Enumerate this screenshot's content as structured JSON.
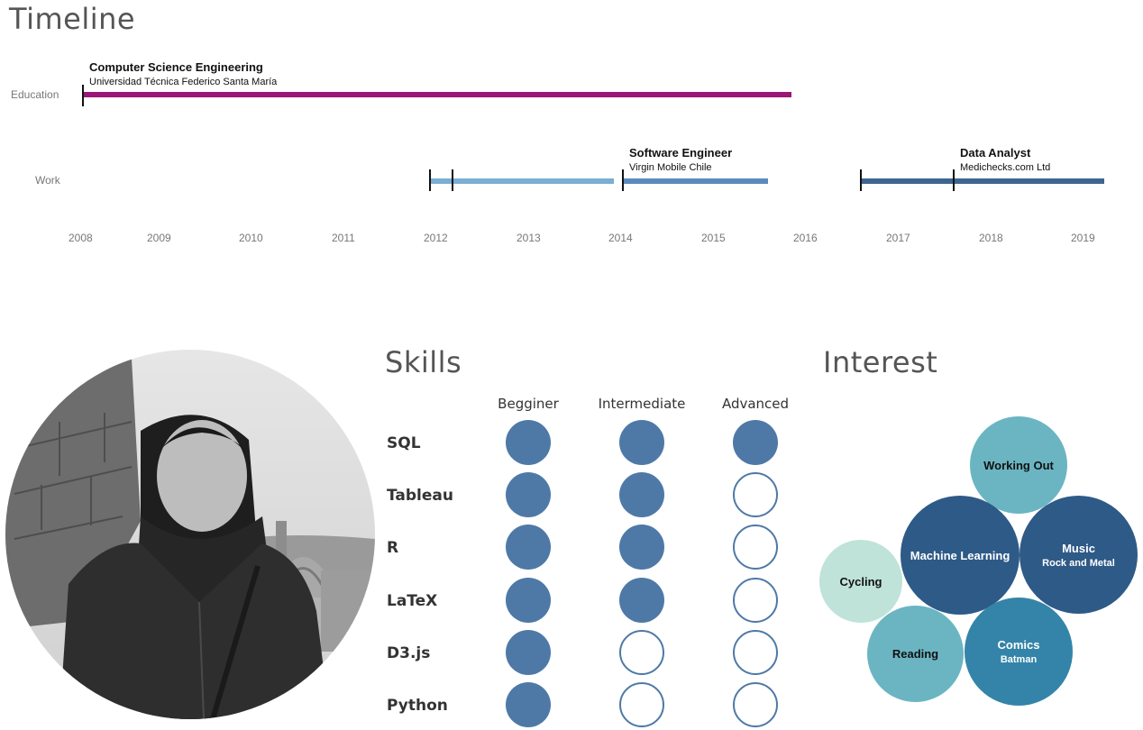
{
  "timeline": {
    "title": "Timeline",
    "rows": {
      "education": "Education",
      "work": "Work"
    },
    "years": [
      "2008",
      "2009",
      "2010",
      "2011",
      "2012",
      "2013",
      "2014",
      "2015",
      "2016",
      "2017",
      "2018",
      "2019"
    ],
    "education": {
      "title": "Computer Science Engineering",
      "subtitle": "Universidad Técnica Federico Santa María",
      "color": "#9b1679"
    },
    "work": [
      {
        "title": "",
        "subtitle": "",
        "color": "#7aaed3"
      },
      {
        "title": "Software Engineer",
        "subtitle": "Virgin Mobile Chile",
        "color": "#5b8bbd"
      },
      {
        "title": "Data Analyst",
        "subtitle": "Medichecks.com Ltd",
        "color": "#3d6590"
      }
    ]
  },
  "skills": {
    "title": "Skills",
    "levels": [
      "Begginer",
      "Intermediate",
      "Advanced"
    ],
    "items": [
      {
        "name": "SQL",
        "level": 3
      },
      {
        "name": "Tableau",
        "level": 2
      },
      {
        "name": "R",
        "level": 2
      },
      {
        "name": "LaTeX",
        "level": 2
      },
      {
        "name": "D3.js",
        "level": 1
      },
      {
        "name": "Python",
        "level": 1
      }
    ],
    "color": "#4e79a7"
  },
  "interest": {
    "title": "Interest",
    "items": [
      {
        "title": "Working Out",
        "subtitle": "",
        "color": "#6bb5c3"
      },
      {
        "title": "Machine Learning",
        "subtitle": "",
        "color": "#2e5a87"
      },
      {
        "title": "Music",
        "subtitle": "Rock and Metal",
        "color": "#2e5a87"
      },
      {
        "title": "Cycling",
        "subtitle": "",
        "color": "#bfe3d8"
      },
      {
        "title": "Reading",
        "subtitle": "",
        "color": "#6bb5c3"
      },
      {
        "title": "Comics",
        "subtitle": "Batman",
        "color": "#3484a9"
      }
    ]
  }
}
